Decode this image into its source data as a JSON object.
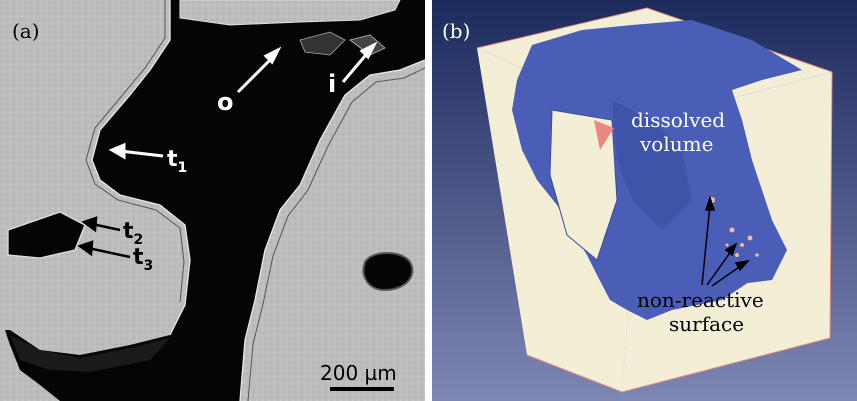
{
  "figure": {
    "panel_a": {
      "label": "(a)",
      "annotations": {
        "o": "o",
        "i": "i",
        "t1_main": "t",
        "t1_sub": "1",
        "t2_main": "t",
        "t2_sub": "2",
        "t3_main": "t",
        "t3_sub": "3"
      },
      "scale_bar": "200 µm"
    },
    "panel_b": {
      "label": "(b)",
      "dissolved_line1": "dissolved",
      "dissolved_line2": "volume",
      "nonreactive_line1": "non-reactive",
      "nonreactive_line2": "surface"
    },
    "colors": {
      "grain_gray": "#bdbdbd",
      "pore_black": "#050505",
      "cube_cream": "#f3eed6",
      "dissolved_blue": "#4a5eb8",
      "background_blue": "#2f3f78"
    }
  }
}
